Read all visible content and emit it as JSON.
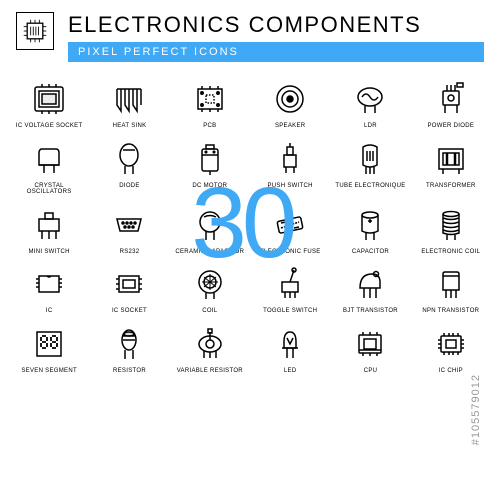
{
  "header": {
    "title": "ELECTRONICS COMPONENTS",
    "subtitle": "PIXEL PERFECT ICONS"
  },
  "overlay_number": "30",
  "watermark": "#105579012",
  "grid_cols": 6,
  "colors": {
    "accent": "#3fa9f5",
    "text": "#000000",
    "background": "#ffffff",
    "watermark": "#999999"
  },
  "items": [
    {
      "id": "ic-voltage-socket",
      "label": "IC VOLTAGE SOCKET"
    },
    {
      "id": "heat-sink",
      "label": "HEAT SINK"
    },
    {
      "id": "pcb",
      "label": "PCB"
    },
    {
      "id": "speaker",
      "label": "SPEAKER"
    },
    {
      "id": "ldr",
      "label": "LDR"
    },
    {
      "id": "power-diode",
      "label": "POWER DIODE"
    },
    {
      "id": "crystal-oscillators",
      "label": "CRYSTAL OSCILLATORS"
    },
    {
      "id": "diode",
      "label": "DIODE"
    },
    {
      "id": "dc-motor",
      "label": "DC MOTOR"
    },
    {
      "id": "push-switch",
      "label": "PUSH SWITCH"
    },
    {
      "id": "tube-electronique",
      "label": "TUBE ELECTRONIQUE"
    },
    {
      "id": "transformer",
      "label": "TRANSFORMER"
    },
    {
      "id": "mini-switch",
      "label": "MINI SWITCH"
    },
    {
      "id": "rs232",
      "label": "RS232"
    },
    {
      "id": "ceramic-capacitor",
      "label": "CERAMIC CAPACITOR"
    },
    {
      "id": "electronic-fuse",
      "label": "ELECTRONIC FUSE"
    },
    {
      "id": "capacitor",
      "label": "CAPACITOR"
    },
    {
      "id": "electronic-coil",
      "label": "ELECTRONIC COIL"
    },
    {
      "id": "ic",
      "label": "IC"
    },
    {
      "id": "ic-socket",
      "label": "IC SOCKET"
    },
    {
      "id": "coil",
      "label": "COIL"
    },
    {
      "id": "toggle-switch",
      "label": "TOGGLE SWITCH"
    },
    {
      "id": "bjt-transistor",
      "label": "BJT TRANSISTOR"
    },
    {
      "id": "npn-transistor",
      "label": "NPN TRANSISTOR"
    },
    {
      "id": "seven-segment",
      "label": "SEVEN SEGMENT"
    },
    {
      "id": "resistor",
      "label": "RESISTOR"
    },
    {
      "id": "variable-resistor",
      "label": "VARIABLE RESISTOR"
    },
    {
      "id": "led",
      "label": "LED"
    },
    {
      "id": "cpu",
      "label": "CPU"
    },
    {
      "id": "ic-chip",
      "label": "IC CHIP"
    }
  ]
}
